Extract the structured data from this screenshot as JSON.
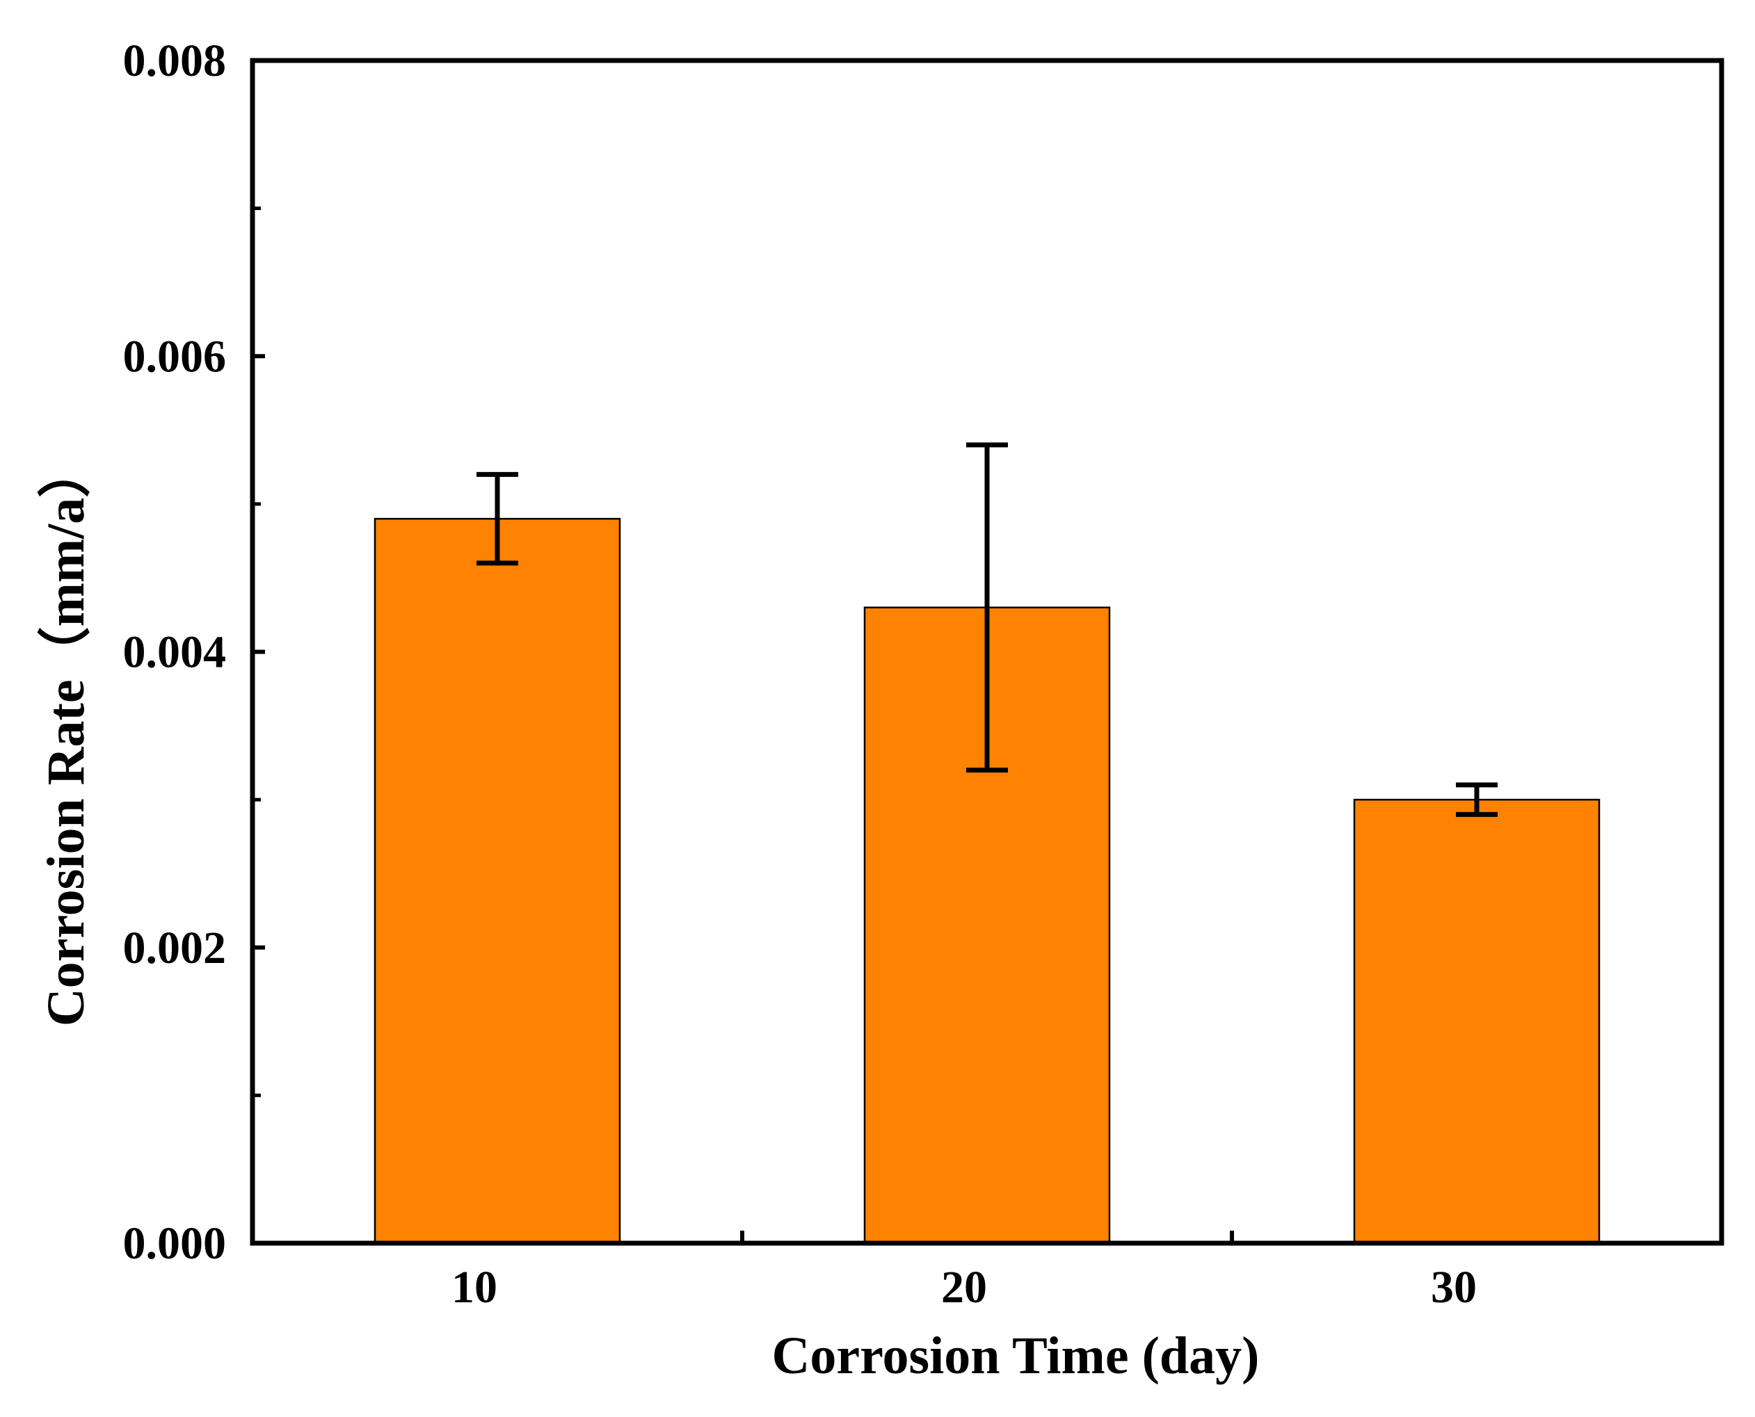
{
  "chart_data": {
    "type": "bar",
    "title": "",
    "xlabel": "Corrosion Time (day)",
    "ylabel": "Corrosion Rate（mm/a）",
    "categories": [
      "10",
      "20",
      "30"
    ],
    "series": [
      {
        "name": "Corrosion Rate",
        "values": [
          0.0049,
          0.0043,
          0.003
        ],
        "error_low": [
          0.0046,
          0.0032,
          0.0029
        ],
        "error_high": [
          0.0052,
          0.0054,
          0.0031
        ]
      }
    ],
    "ylim": [
      0,
      0.008
    ],
    "yticks": [
      "0.000",
      "0.002",
      "0.004",
      "0.006",
      "0.008"
    ],
    "grid": false,
    "legend": "none"
  },
  "colors": {
    "bar_fill": "#ff8200",
    "bar_edge": "#000000",
    "axis": "#000000"
  }
}
